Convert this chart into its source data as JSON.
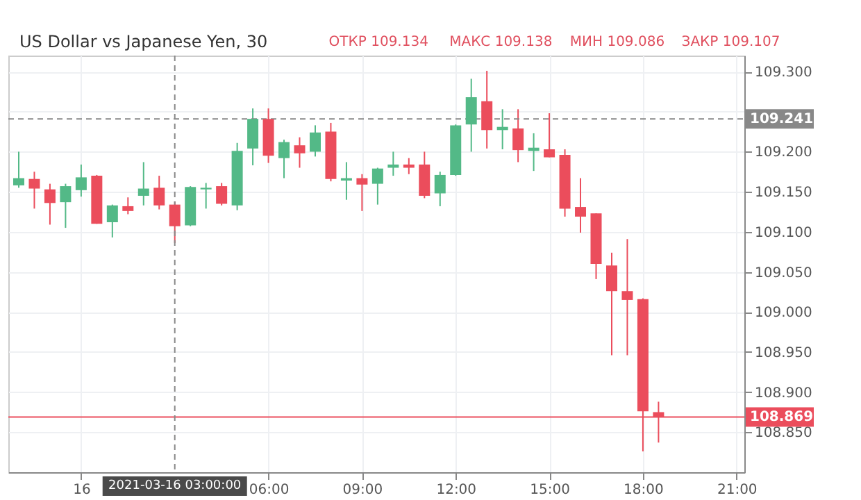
{
  "chart_data": {
    "type": "candlestick",
    "title": "US Dollar vs Japanese Yen, 30",
    "annotations": [
      "ОТКР 109.134",
      "МАКС 109.138",
      "МИН 109.086",
      "ЗАКР 109.107"
    ],
    "x": [
      "2021-03-15T22:00",
      "2021-03-15T22:30",
      "2021-03-15T23:00",
      "2021-03-15T23:30",
      "2021-03-16T00:00",
      "2021-03-16T00:30",
      "2021-03-16T01:00",
      "2021-03-16T01:30",
      "2021-03-16T02:00",
      "2021-03-16T02:30",
      "2021-03-16T03:00",
      "2021-03-16T03:30",
      "2021-03-16T04:00",
      "2021-03-16T04:30",
      "2021-03-16T05:00",
      "2021-03-16T05:30",
      "2021-03-16T06:00",
      "2021-03-16T06:30",
      "2021-03-16T07:00",
      "2021-03-16T07:30",
      "2021-03-16T08:00",
      "2021-03-16T08:30",
      "2021-03-16T09:00",
      "2021-03-16T09:30",
      "2021-03-16T10:00",
      "2021-03-16T10:30",
      "2021-03-16T11:00",
      "2021-03-16T11:30",
      "2021-03-16T12:00",
      "2021-03-16T12:30",
      "2021-03-16T13:00",
      "2021-03-16T13:30",
      "2021-03-16T14:00",
      "2021-03-16T14:30",
      "2021-03-16T15:00",
      "2021-03-16T15:30",
      "2021-03-16T16:00",
      "2021-03-16T16:30",
      "2021-03-16T17:00",
      "2021-03-16T17:30",
      "2021-03-16T18:00",
      "2021-03-16T18:30"
    ],
    "ohlc": [
      [
        109.158,
        109.2,
        109.155,
        109.167
      ],
      [
        109.166,
        109.175,
        109.129,
        109.154
      ],
      [
        109.153,
        109.16,
        109.109,
        109.136
      ],
      [
        109.137,
        109.16,
        109.105,
        109.157
      ],
      [
        109.152,
        109.184,
        109.144,
        109.168
      ],
      [
        109.17,
        109.171,
        109.11,
        109.11
      ],
      [
        109.112,
        109.134,
        109.093,
        109.133
      ],
      [
        109.132,
        109.143,
        109.122,
        109.126
      ],
      [
        109.145,
        109.187,
        109.133,
        109.154
      ],
      [
        109.155,
        109.17,
        109.128,
        109.133
      ],
      [
        109.134,
        109.138,
        109.086,
        109.107
      ],
      [
        109.108,
        109.157,
        109.107,
        109.156
      ],
      [
        109.153,
        109.161,
        109.129,
        109.155
      ],
      [
        109.157,
        109.161,
        109.133,
        109.135
      ],
      [
        109.133,
        109.211,
        109.127,
        109.201
      ],
      [
        109.204,
        109.254,
        109.183,
        109.241
      ],
      [
        109.241,
        109.254,
        109.186,
        109.195
      ],
      [
        109.192,
        109.215,
        109.167,
        109.212
      ],
      [
        109.208,
        109.218,
        109.18,
        109.198
      ],
      [
        109.2,
        109.233,
        109.194,
        109.224
      ],
      [
        109.225,
        109.236,
        109.163,
        109.166
      ],
      [
        109.164,
        109.187,
        109.14,
        109.167
      ],
      [
        109.167,
        109.172,
        109.126,
        109.159
      ],
      [
        109.16,
        109.18,
        109.134,
        109.179
      ],
      [
        109.18,
        109.2,
        109.17,
        109.184
      ],
      [
        109.184,
        109.192,
        109.172,
        109.18
      ],
      [
        109.184,
        109.2,
        109.142,
        109.145
      ],
      [
        109.148,
        109.175,
        109.132,
        109.171
      ],
      [
        109.171,
        109.234,
        109.17,
        109.233
      ],
      [
        109.234,
        109.291,
        109.2,
        109.268
      ],
      [
        109.263,
        109.301,
        109.204,
        109.227
      ],
      [
        109.227,
        109.253,
        109.203,
        109.231
      ],
      [
        109.229,
        109.253,
        109.187,
        109.202
      ],
      [
        109.201,
        109.223,
        109.176,
        109.205
      ],
      [
        109.203,
        109.248,
        109.193,
        109.193
      ],
      [
        109.196,
        109.203,
        109.119,
        109.129
      ],
      [
        109.131,
        109.167,
        109.099,
        109.119
      ],
      [
        109.123,
        109.123,
        109.041,
        109.06
      ],
      [
        109.058,
        109.074,
        108.946,
        109.026
      ],
      [
        109.026,
        109.091,
        108.946,
        109.015
      ],
      [
        109.016,
        109.017,
        108.826,
        108.876
      ],
      [
        108.875,
        108.888,
        108.837,
        108.869
      ]
    ],
    "colors": [
      "#53b987",
      "#eb4d5c",
      "#eb4d5c",
      "#53b987",
      "#53b987",
      "#eb4d5c",
      "#53b987",
      "#eb4d5c",
      "#53b987",
      "#eb4d5c",
      "#eb4d5c",
      "#53b987",
      "#53b987",
      "#eb4d5c",
      "#53b987",
      "#53b987",
      "#eb4d5c",
      "#53b987",
      "#eb4d5c",
      "#53b987",
      "#eb4d5c",
      "#53b987",
      "#eb4d5c",
      "#53b987",
      "#53b987",
      "#eb4d5c",
      "#eb4d5c",
      "#53b987",
      "#53b987",
      "#53b987",
      "#eb4d5c",
      "#53b987",
      "#eb4d5c",
      "#53b987",
      "#eb4d5c",
      "#eb4d5c",
      "#eb4d5c",
      "#eb4d5c",
      "#eb4d5c",
      "#eb4d5c",
      "#eb4d5c",
      "#eb4d5c"
    ],
    "xlim": [
      "2021-03-15T21:40",
      "2021-03-16T21:15"
    ],
    "xticks": [
      {
        "value": "2021-03-16T00:00",
        "label": "16"
      },
      {
        "value": "2021-03-16T06:00",
        "label": "06:00"
      },
      {
        "value": "2021-03-16T09:00",
        "label": "09:00"
      },
      {
        "value": "2021-03-16T12:00",
        "label": "12:00"
      },
      {
        "value": "2021-03-16T15:00",
        "label": "15:00"
      },
      {
        "value": "2021-03-16T18:00",
        "label": "18:00"
      },
      {
        "value": "2021-03-16T21:00",
        "label": "21:00"
      }
    ],
    "ylim": [
      108.8,
      109.32
    ],
    "yticks": [
      {
        "value": 108.85,
        "label": "108.850"
      },
      {
        "value": 108.9,
        "label": "108.900"
      },
      {
        "value": 108.95,
        "label": "108.950"
      },
      {
        "value": 109.0,
        "label": "109.000"
      },
      {
        "value": 109.05,
        "label": "109.050"
      },
      {
        "value": 109.1,
        "label": "109.100"
      },
      {
        "value": 109.15,
        "label": "109.150"
      },
      {
        "value": 109.2,
        "label": "109.200"
      },
      {
        "value": 109.25,
        "label": null
      },
      {
        "value": 109.3,
        "label": "109.300"
      }
    ],
    "ref_lines": [
      {
        "axis": "y",
        "value": 109.241,
        "label": "109.241",
        "color": "#888888",
        "line_style": "dashed"
      },
      {
        "axis": "y",
        "value": 108.869,
        "label": "108.869",
        "color": "#eb4d5c",
        "line_style": "solid"
      },
      {
        "axis": "x",
        "value": "2021-03-16T03:00",
        "label": "2021-03-16 03:00:00",
        "color": "#888888",
        "line_style": "dashed"
      }
    ],
    "grid": true
  }
}
